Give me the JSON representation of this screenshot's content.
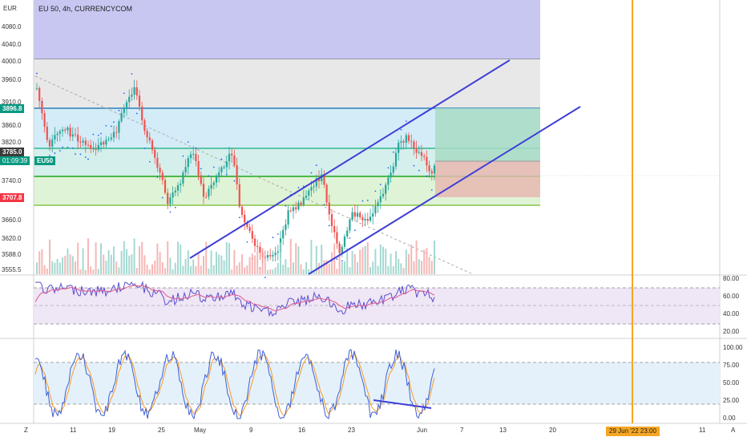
{
  "header": {
    "currency": "EUR",
    "title": "EU 50, 4h, CURRENCYCOM"
  },
  "price_axis": {
    "labels": [
      "4080.0",
      "4040.0",
      "4000.0",
      "3960.0",
      "3910.0",
      "3860.0",
      "3820.0",
      "3740.0",
      "3660.0",
      "3620.0",
      "3588.0",
      "3555.5"
    ]
  },
  "badges": {
    "upper_level": "3896.8",
    "current_price": "3785.0",
    "countdown": "01:09:39",
    "symbol": "EU50",
    "lower_level": "3707.8",
    "colors": {
      "upper": "#089981",
      "current": "#3b3b3b",
      "countdown": "#089981",
      "lower": "#f23645"
    }
  },
  "rsi_axis": {
    "labels": [
      "80.00",
      "60.00",
      "40.00",
      "20.00"
    ]
  },
  "stoch_axis": {
    "labels": [
      "100.00",
      "75.00",
      "50.00",
      "25.00",
      "0.00"
    ]
  },
  "time_axis": {
    "labels": [
      "11",
      "19",
      "25",
      "May",
      "9",
      "16",
      "23",
      "Jun",
      "7",
      "13",
      "20",
      "11"
    ],
    "cursor_time": "29 Jun '22   23:00",
    "left_button": "Z",
    "right_button": "A"
  },
  "colors": {
    "trend_line": "#3e3ed6",
    "cursor_line": "#f5a623",
    "bull": "#26a69a",
    "bear": "#ef5350"
  }
}
